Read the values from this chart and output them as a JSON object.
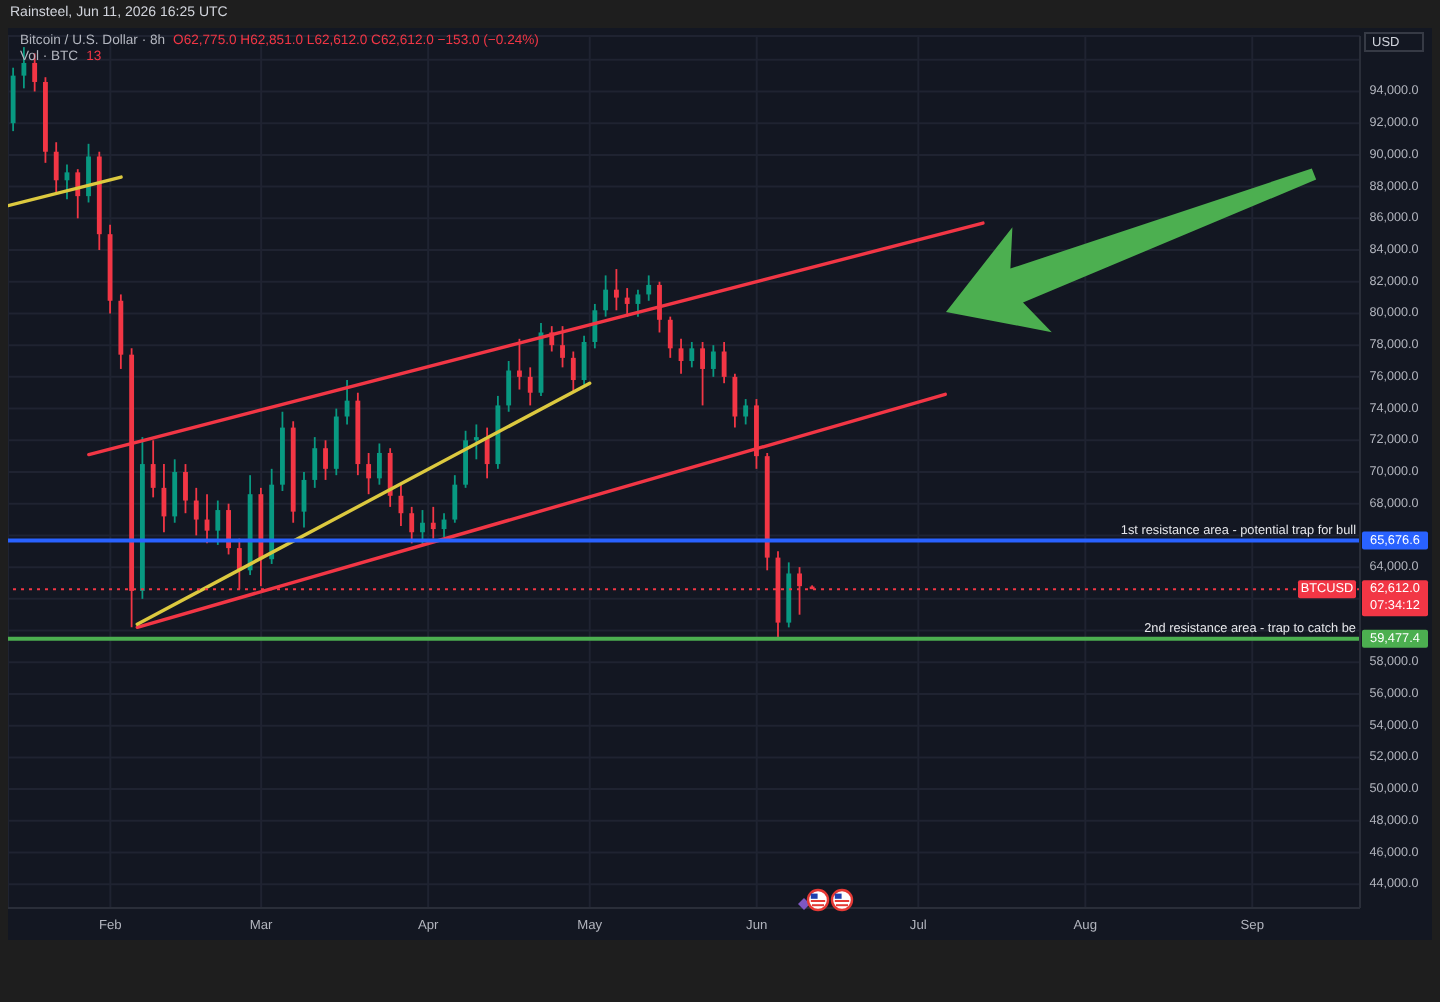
{
  "chart_data": {
    "type": "candlestick",
    "title": "Bitcoin / U.S. Dollar · 8h",
    "ylabel": "USD",
    "annotations": [
      "Rainsteel, Jun 11, 2026 16:25 UTC",
      "O62,775.0 H62,851.0 L62,612.0 C62,612.0 −153.0 (−0.24%)",
      "Vol · BTC",
      "13",
      "65,676.6",
      "62,612.0",
      "59,477.4",
      "07:34:12"
    ],
    "xlim": [
      "2026-01-13",
      "2026-09-21"
    ],
    "xticks": [
      {
        "value": "2026-02-01",
        "label": "Feb"
      },
      {
        "value": "2026-03-01",
        "label": "Mar"
      },
      {
        "value": "2026-04-01",
        "label": "Apr"
      },
      {
        "value": "2026-05-01",
        "label": "May"
      },
      {
        "value": "2026-06-01",
        "label": "Jun"
      },
      {
        "value": "2026-07-01",
        "label": "Jul"
      },
      {
        "value": "2026-08-01",
        "label": "Aug"
      },
      {
        "value": "2026-09-01",
        "label": "Sep"
      }
    ],
    "ylim": [
      42500,
      97500
    ],
    "yticks": [
      {
        "value": 44000,
        "label": "44,000.0"
      },
      {
        "value": 46000,
        "label": "46,000.0"
      },
      {
        "value": 48000,
        "label": "48,000.0"
      },
      {
        "value": 50000,
        "label": "50,000.0"
      },
      {
        "value": 52000,
        "label": "52,000.0"
      },
      {
        "value": 54000,
        "label": "54,000.0"
      },
      {
        "value": 56000,
        "label": "56,000.0"
      },
      {
        "value": 58000,
        "label": "58,000.0"
      },
      {
        "value": 60000,
        "label": null
      },
      {
        "value": 62000,
        "label": null
      },
      {
        "value": 64000,
        "label": "64,000.0"
      },
      {
        "value": 66000,
        "label": null
      },
      {
        "value": 68000,
        "label": "68,000.0"
      },
      {
        "value": 70000,
        "label": "70,000.0"
      },
      {
        "value": 72000,
        "label": "72,000.0"
      },
      {
        "value": 74000,
        "label": "74,000.0"
      },
      {
        "value": 76000,
        "label": "76,000.0"
      },
      {
        "value": 78000,
        "label": "78,000.0"
      },
      {
        "value": 80000,
        "label": "80,000.0"
      },
      {
        "value": 82000,
        "label": "82,000.0"
      },
      {
        "value": 84000,
        "label": "84,000.0"
      },
      {
        "value": 86000,
        "label": "86,000.0"
      },
      {
        "value": 88000,
        "label": "88,000.0"
      },
      {
        "value": 90000,
        "label": "90,000.0"
      },
      {
        "value": 92000,
        "label": "92,000.0"
      },
      {
        "value": 94000,
        "label": "94,000.0"
      },
      {
        "value": 96000,
        "label": null
      }
    ],
    "grid": true,
    "series": [
      {
        "type": "candlestick",
        "x": [
          "2026-01-14",
          "2026-01-16",
          "2026-01-18",
          "2026-01-20",
          "2026-01-22",
          "2026-01-24",
          "2026-01-26",
          "2026-01-28",
          "2026-01-30",
          "2026-02-01",
          "2026-02-03",
          "2026-02-05",
          "2026-02-07",
          "2026-02-09",
          "2026-02-11",
          "2026-02-13",
          "2026-02-15",
          "2026-02-17",
          "2026-02-19",
          "2026-02-21",
          "2026-02-23",
          "2026-02-25",
          "2026-02-27",
          "2026-03-01",
          "2026-03-03",
          "2026-03-05",
          "2026-03-07",
          "2026-03-09",
          "2026-03-11",
          "2026-03-13",
          "2026-03-15",
          "2026-03-17",
          "2026-03-19",
          "2026-03-21",
          "2026-03-23",
          "2026-03-25",
          "2026-03-27",
          "2026-03-29",
          "2026-03-31",
          "2026-04-02",
          "2026-04-04",
          "2026-04-06",
          "2026-04-08",
          "2026-04-10",
          "2026-04-12",
          "2026-04-14",
          "2026-04-16",
          "2026-04-18",
          "2026-04-20",
          "2026-04-22",
          "2026-04-24",
          "2026-04-26",
          "2026-04-28",
          "2026-04-30",
          "2026-05-02",
          "2026-05-04",
          "2026-05-06",
          "2026-05-08",
          "2026-05-10",
          "2026-05-12",
          "2026-05-14",
          "2026-05-16",
          "2026-05-18",
          "2026-05-20",
          "2026-05-22",
          "2026-05-24",
          "2026-05-26",
          "2026-05-28",
          "2026-05-30",
          "2026-06-01",
          "2026-06-03",
          "2026-06-05",
          "2026-06-07",
          "2026-06-09",
          "2026-06-11T08:00"
        ],
        "ohlc": [
          [
            92000,
            95500,
            91500,
            95000
          ],
          [
            95000,
            96800,
            94200,
            95800
          ],
          [
            95800,
            96400,
            94000,
            94600
          ],
          [
            94600,
            94900,
            89500,
            90200
          ],
          [
            90200,
            90800,
            87600,
            88400
          ],
          [
            88400,
            89400,
            87200,
            88900
          ],
          [
            88900,
            89100,
            86000,
            87400
          ],
          [
            87400,
            90700,
            87000,
            89900
          ],
          [
            89900,
            90200,
            84000,
            85000
          ],
          [
            85000,
            85600,
            80000,
            80800
          ],
          [
            80800,
            81200,
            76500,
            77400
          ],
          [
            77400,
            77800,
            60200,
            62500
          ],
          [
            62500,
            72200,
            62000,
            70500
          ],
          [
            70500,
            72000,
            68400,
            69000
          ],
          [
            69000,
            70500,
            66200,
            67200
          ],
          [
            67200,
            70800,
            66800,
            70000
          ],
          [
            70000,
            70500,
            67400,
            68200
          ],
          [
            68200,
            69000,
            66000,
            67000
          ],
          [
            67000,
            68600,
            65500,
            66300
          ],
          [
            66300,
            68200,
            65400,
            67600
          ],
          [
            67600,
            68000,
            64800,
            65200
          ],
          [
            65200,
            65800,
            62600,
            63800
          ],
          [
            63800,
            69800,
            63500,
            68600
          ],
          [
            68600,
            69000,
            62800,
            64500
          ],
          [
            64500,
            70200,
            64200,
            69200
          ],
          [
            69200,
            73800,
            68800,
            72800
          ],
          [
            72800,
            73200,
            66800,
            67500
          ],
          [
            67500,
            70000,
            66500,
            69500
          ],
          [
            69500,
            72200,
            69000,
            71500
          ],
          [
            71500,
            72000,
            69500,
            70200
          ],
          [
            70200,
            74000,
            69800,
            73500
          ],
          [
            73500,
            75800,
            73000,
            74500
          ],
          [
            74500,
            75000,
            69800,
            70500
          ],
          [
            70500,
            71200,
            68600,
            69600
          ],
          [
            69600,
            71800,
            69200,
            71200
          ],
          [
            71200,
            71500,
            67800,
            68500
          ],
          [
            68500,
            69200,
            66600,
            67400
          ],
          [
            67400,
            67800,
            65500,
            66200
          ],
          [
            66200,
            67600,
            65400,
            66800
          ],
          [
            66800,
            67800,
            65800,
            66400
          ],
          [
            66400,
            67400,
            65900,
            67000
          ],
          [
            67000,
            69800,
            66800,
            69200
          ],
          [
            69200,
            72600,
            69000,
            72000
          ],
          [
            72000,
            73000,
            70800,
            72200
          ],
          [
            72200,
            72800,
            69600,
            70500
          ],
          [
            70500,
            74800,
            70200,
            74200
          ],
          [
            74200,
            77000,
            73800,
            76400
          ],
          [
            76400,
            78400,
            75200,
            76000
          ],
          [
            76000,
            76600,
            74200,
            75000
          ],
          [
            75000,
            79400,
            74800,
            78800
          ],
          [
            78800,
            79200,
            77600,
            78000
          ],
          [
            78000,
            79200,
            76600,
            77200
          ],
          [
            77200,
            77600,
            75000,
            75800
          ],
          [
            75800,
            78600,
            75500,
            78200
          ],
          [
            78200,
            80600,
            77800,
            80200
          ],
          [
            80200,
            82400,
            79800,
            81500
          ],
          [
            81500,
            82800,
            80200,
            81000
          ],
          [
            81000,
            81600,
            79800,
            80600
          ],
          [
            80600,
            81500,
            79800,
            81200
          ],
          [
            81200,
            82400,
            80800,
            81800
          ],
          [
            81800,
            82000,
            78800,
            79600
          ],
          [
            79600,
            79800,
            77200,
            77800
          ],
          [
            77800,
            78400,
            76200,
            77000
          ],
          [
            77000,
            78200,
            76600,
            77800
          ],
          [
            77800,
            78200,
            74200,
            76500
          ],
          [
            76500,
            78000,
            76000,
            77600
          ],
          [
            77600,
            78200,
            75600,
            76000
          ],
          [
            76000,
            76200,
            72800,
            73500
          ],
          [
            73500,
            74600,
            73000,
            74200
          ],
          [
            74200,
            74600,
            70200,
            71000
          ],
          [
            71000,
            71200,
            63800,
            64600
          ],
          [
            64600,
            65000,
            59500,
            60500
          ],
          [
            60500,
            64300,
            60200,
            63600
          ],
          [
            63600,
            64000,
            61000,
            62800
          ],
          [
            62775,
            62851,
            62612,
            62612
          ]
        ],
        "colors": [
          "#089981",
          "#089981",
          "#f23645",
          "#f23645",
          "#f23645",
          "#089981",
          "#f23645",
          "#089981",
          "#f23645",
          "#f23645",
          "#f23645",
          "#f23645",
          "#089981",
          "#f23645",
          "#f23645",
          "#089981",
          "#f23645",
          "#f23645",
          "#f23645",
          "#089981",
          "#f23645",
          "#f23645",
          "#089981",
          "#f23645",
          "#089981",
          "#089981",
          "#f23645",
          "#089981",
          "#089981",
          "#f23645",
          "#089981",
          "#089981",
          "#f23645",
          "#f23645",
          "#089981",
          "#f23645",
          "#f23645",
          "#f23645",
          "#089981",
          "#f23645",
          "#089981",
          "#089981",
          "#089981",
          "#089981",
          "#f23645",
          "#089981",
          "#089981",
          "#f23645",
          "#f23645",
          "#089981",
          "#f23645",
          "#f23645",
          "#f23645",
          "#089981",
          "#089981",
          "#089981",
          "#f23645",
          "#f23645",
          "#089981",
          "#089981",
          "#f23645",
          "#f23645",
          "#f23645",
          "#089981",
          "#f23645",
          "#089981",
          "#f23645",
          "#f23645",
          "#089981",
          "#f23645",
          "#f23645",
          "#f23645",
          "#089981",
          "#f23645",
          "#f23645"
        ]
      },
      {
        "type": "line",
        "x": [
          "2026-01-28",
          "2026-07-13"
        ],
        "values": [
          71100,
          85700
        ],
        "color": "#f23645"
      },
      {
        "type": "line",
        "x": [
          "2026-02-06",
          "2026-07-06"
        ],
        "values": [
          60200,
          74900
        ],
        "color": "#f23645"
      },
      {
        "type": "line",
        "x": [
          "2026-01-13",
          "2026-02-03"
        ],
        "values": [
          86800,
          88600
        ],
        "color": "#dcc93f"
      },
      {
        "type": "line",
        "x": [
          "2026-02-06",
          "2026-05-01"
        ],
        "values": [
          60400,
          75600
        ],
        "color": "#dcc93f"
      }
    ],
    "ref_lines": [
      {
        "axis": "y",
        "value": 65676.6,
        "label": "1st resistance area - potential trap for bull",
        "color": "#2962ff"
      },
      {
        "axis": "y",
        "value": 62612,
        "label": "BTCUSD",
        "color": "#f23645",
        "line_style": "dotted"
      },
      {
        "axis": "y",
        "value": 59477.4,
        "label": "2nd resistance area - trap to catch be",
        "color": "#4caf50"
      }
    ]
  }
}
